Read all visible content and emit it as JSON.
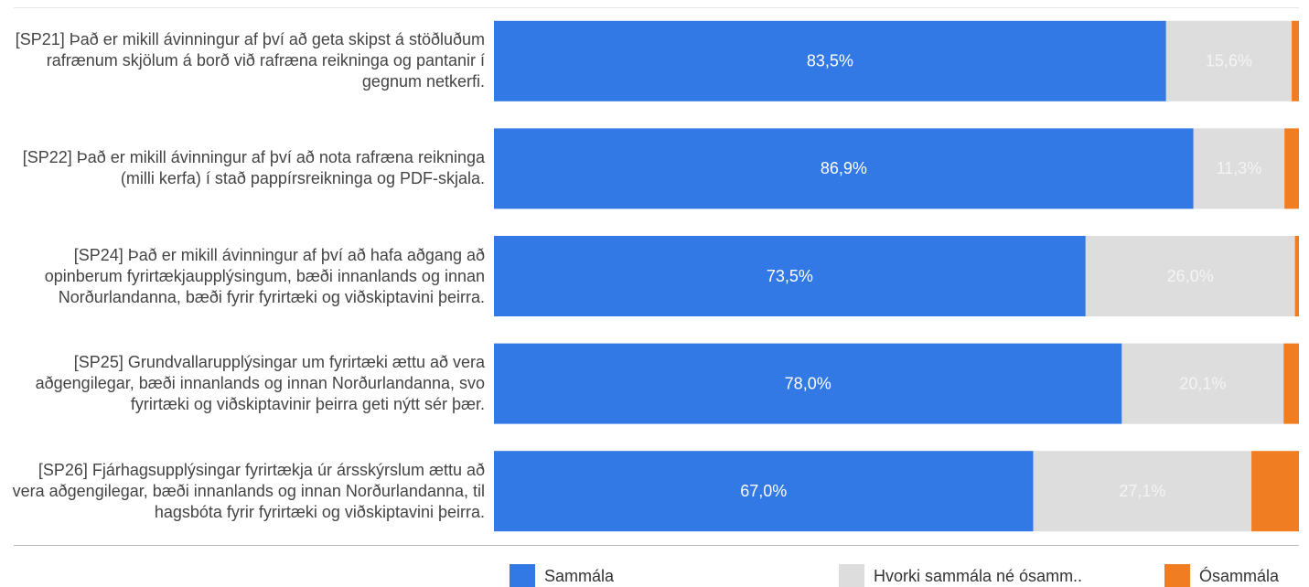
{
  "chart_data": {
    "type": "stacked_bar_horizontal",
    "categories": [
      "[SP21] Það er mikill ávinningur af því að geta skipst á stöðluðum rafrænum skjölum á borð við rafræna reikninga og pantanir í gegnum netkerfi.",
      "[SP22] Það er mikill ávinningur af því að nota rafræna reikninga (milli kerfa) í stað pappírsreikninga og PDF-skjala.",
      "[SP24] Það er mikill ávinningur af því að hafa aðgang að opinberum fyrirtækjaupplýsingum, bæði innanlands og innan Norðurlandanna, bæði fyrir fyrirtæki og viðskiptavini þeirra.",
      "[SP25] Grundvallarupplýsingar um fyrirtæki ættu að vera aðgengilegar, bæði innanlands og innan Norðurlandanna, svo fyrirtæki og viðskiptavinir þeirra geti nýtt sér þær.",
      "[SP26] Fjárhagsupplýsingar fyrirtækja úr ársskýrslum ættu að vera aðgengilegar, bæði innanlands og innan Norðurlandanna, til hagsbóta fyrir fyrirtæki og viðskiptavini þeirra."
    ],
    "series": [
      {
        "name": "Sammála",
        "color": "#3379e6",
        "values": [
          83.5,
          86.9,
          73.5,
          78.0,
          67.0
        ],
        "value_labels": [
          "83,5%",
          "86,9%",
          "73,5%",
          "78,0%",
          "67,0%"
        ]
      },
      {
        "name": "Hvorki sammála né ósamm..",
        "color": "#dddddd",
        "values": [
          15.6,
          11.3,
          26.0,
          20.1,
          27.1
        ],
        "value_labels": [
          "15,6%",
          "11,3%",
          "26,0%",
          "20,1%",
          "27,1%"
        ]
      },
      {
        "name": "Ósammála",
        "color": "#f07d22",
        "values": [
          0.9,
          1.8,
          0.5,
          1.9,
          5.9
        ]
      }
    ],
    "xlim": [
      0,
      100
    ],
    "legend": "bottom"
  }
}
